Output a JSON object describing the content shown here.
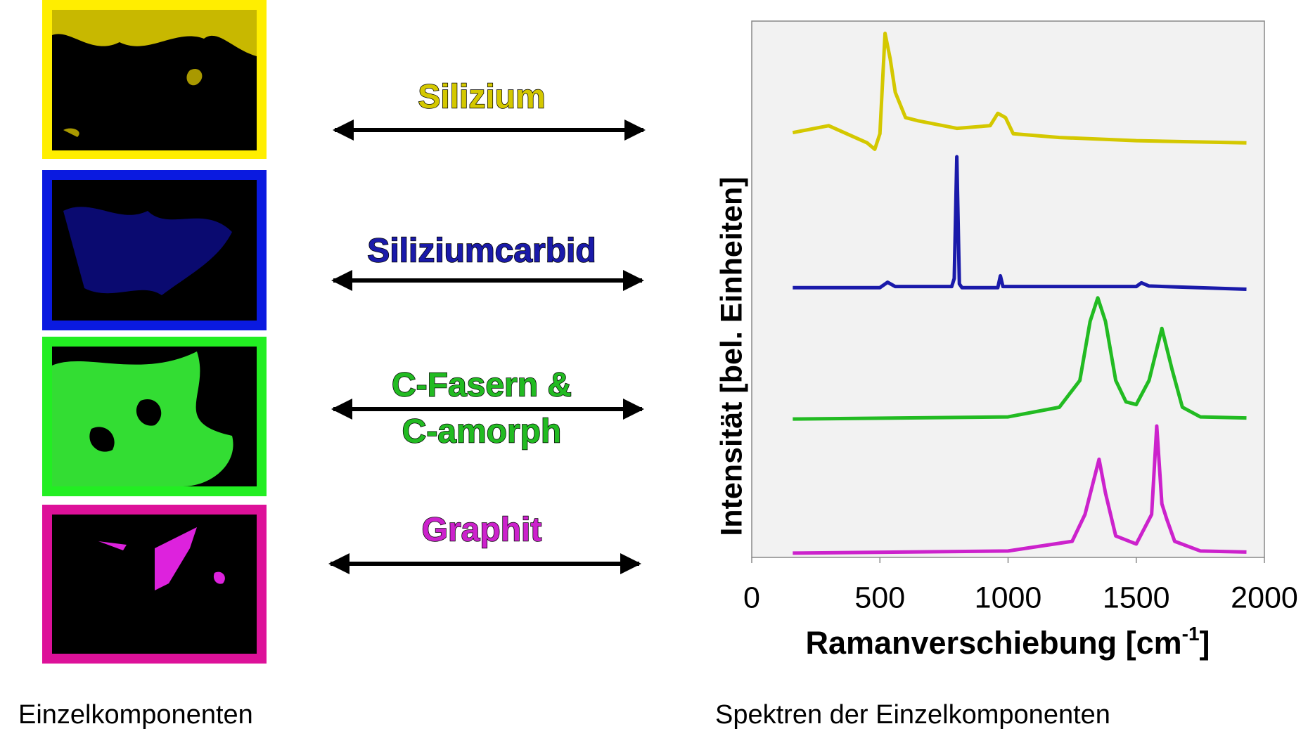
{
  "chart_data": {
    "type": "line",
    "y_label": "Intensität [bel. Einheiten]",
    "x_label": "Ramanverschiebung [cm",
    "x_label_sup": "-1",
    "x_label_end": "]",
    "xlim": [
      0,
      2000
    ],
    "xticks": [
      0,
      500,
      1000,
      1500,
      2000
    ],
    "ylim": [
      0,
      100
    ],
    "series": [
      {
        "name_lines": [
          "Silizium"
        ],
        "color": "#d4c800",
        "x": [
          160,
          300,
          450,
          480,
          500,
          520,
          540,
          560,
          600,
          650,
          800,
          930,
          960,
          990,
          1020,
          1200,
          1500,
          1930
        ],
        "values": [
          79.2,
          80.5,
          77.3,
          76.1,
          79,
          97.7,
          93,
          86.7,
          82,
          81.4,
          80,
          80.5,
          82.8,
          82,
          79,
          78.3,
          77.7,
          77.3
        ]
      },
      {
        "name_lines": [
          "Siliziumcarbid"
        ],
        "color": "#1a1aaa",
        "x": [
          160,
          500,
          530,
          560,
          780,
          790,
          800,
          810,
          820,
          960,
          970,
          980,
          1500,
          1520,
          1550,
          1930
        ],
        "values": [
          50.3,
          50.3,
          51.3,
          50.5,
          50.5,
          52,
          74.7,
          51,
          50.3,
          50.3,
          52.5,
          50.5,
          50.5,
          51.2,
          50.6,
          50
        ]
      },
      {
        "name_lines": [
          "C-Fasern &",
          "C-amorph"
        ],
        "color": "#22bb22",
        "x": [
          160,
          1000,
          1200,
          1280,
          1320,
          1350,
          1380,
          1420,
          1460,
          1500,
          1550,
          1600,
          1640,
          1680,
          1750,
          1930
        ],
        "values": [
          25.8,
          26.2,
          28,
          33,
          44,
          48.4,
          44,
          33,
          29,
          28.5,
          33,
          42.7,
          35,
          28,
          26.2,
          26
        ]
      },
      {
        "name_lines": [
          "Graphit"
        ],
        "color": "#cc22cc",
        "x": [
          160,
          1000,
          1250,
          1300,
          1340,
          1355,
          1380,
          1420,
          1500,
          1560,
          1580,
          1600,
          1620,
          1650,
          1750,
          1930
        ],
        "values": [
          0.8,
          1.2,
          3,
          8,
          15.5,
          18.3,
          12,
          4,
          2.5,
          8,
          24.5,
          10,
          7,
          3,
          1.2,
          1
        ]
      }
    ]
  },
  "captions": {
    "left": "Einzelkomponenten",
    "right": "Spektren der Einzelkomponenten"
  }
}
